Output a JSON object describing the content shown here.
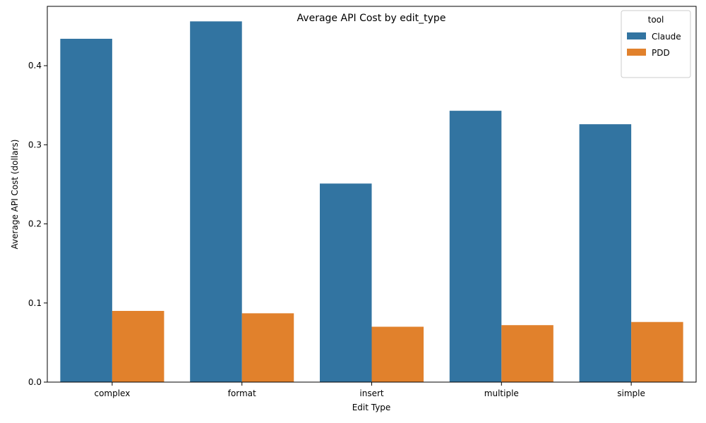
{
  "chart_data": {
    "type": "bar",
    "title": "Average API Cost by edit_type",
    "xlabel": "Edit Type",
    "ylabel": "Average API Cost (dollars)",
    "categories": [
      "complex",
      "format",
      "insert",
      "multiple",
      "simple"
    ],
    "series": [
      {
        "name": "Claude",
        "color": "#3274a1",
        "values": [
          0.434,
          0.456,
          0.251,
          0.343,
          0.326
        ]
      },
      {
        "name": "PDD",
        "color": "#e1812c",
        "values": [
          0.09,
          0.087,
          0.07,
          0.072,
          0.076
        ]
      }
    ],
    "ylim": [
      0,
      0.475
    ],
    "yticks": [
      0.0,
      0.1,
      0.2,
      0.3,
      0.4
    ],
    "ytick_labels": [
      "0.0",
      "0.1",
      "0.2",
      "0.3",
      "0.4"
    ],
    "grid": false,
    "legend": {
      "title": "tool",
      "placement": "top-right"
    }
  }
}
